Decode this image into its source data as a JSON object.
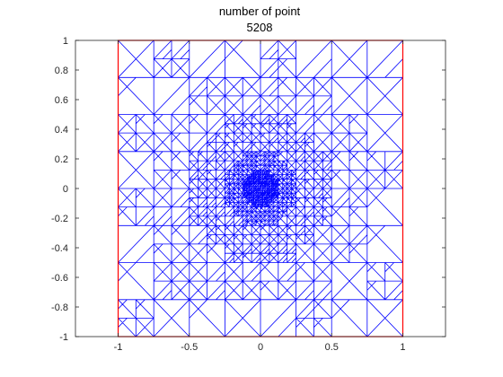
{
  "title": {
    "line1": "number of point",
    "line2": "5208"
  },
  "colors": {
    "mesh": "#0000ff",
    "boundary": "#ff0000",
    "axes": "#262626",
    "background": "#ffffff"
  },
  "chart_data": {
    "type": "triangular-mesh",
    "title": [
      "number of point",
      "5208"
    ],
    "xlabel": "",
    "ylabel": "",
    "xlim": [
      -1.3,
      1.3
    ],
    "ylim": [
      -1,
      1
    ],
    "xticks": [
      -1,
      -0.5,
      0,
      0.5,
      1
    ],
    "yticks": [
      -1,
      -0.8,
      -0.6,
      -0.4,
      -0.2,
      0,
      0.2,
      0.4,
      0.6,
      0.8,
      1
    ],
    "xtick_labels": [
      "-1",
      "-0.5",
      "0",
      "0.5",
      "1"
    ],
    "ytick_labels": [
      "-1",
      "-0.8",
      "-0.6",
      "-0.4",
      "-0.2",
      "0",
      "0.2",
      "0.4",
      "0.6",
      "0.8",
      "1"
    ],
    "domain": {
      "x": [
        -1,
        1
      ],
      "y": [
        -1,
        1
      ]
    },
    "refinement_center": [
      0,
      0
    ],
    "point_count": 5208,
    "grid": false,
    "box": true
  }
}
